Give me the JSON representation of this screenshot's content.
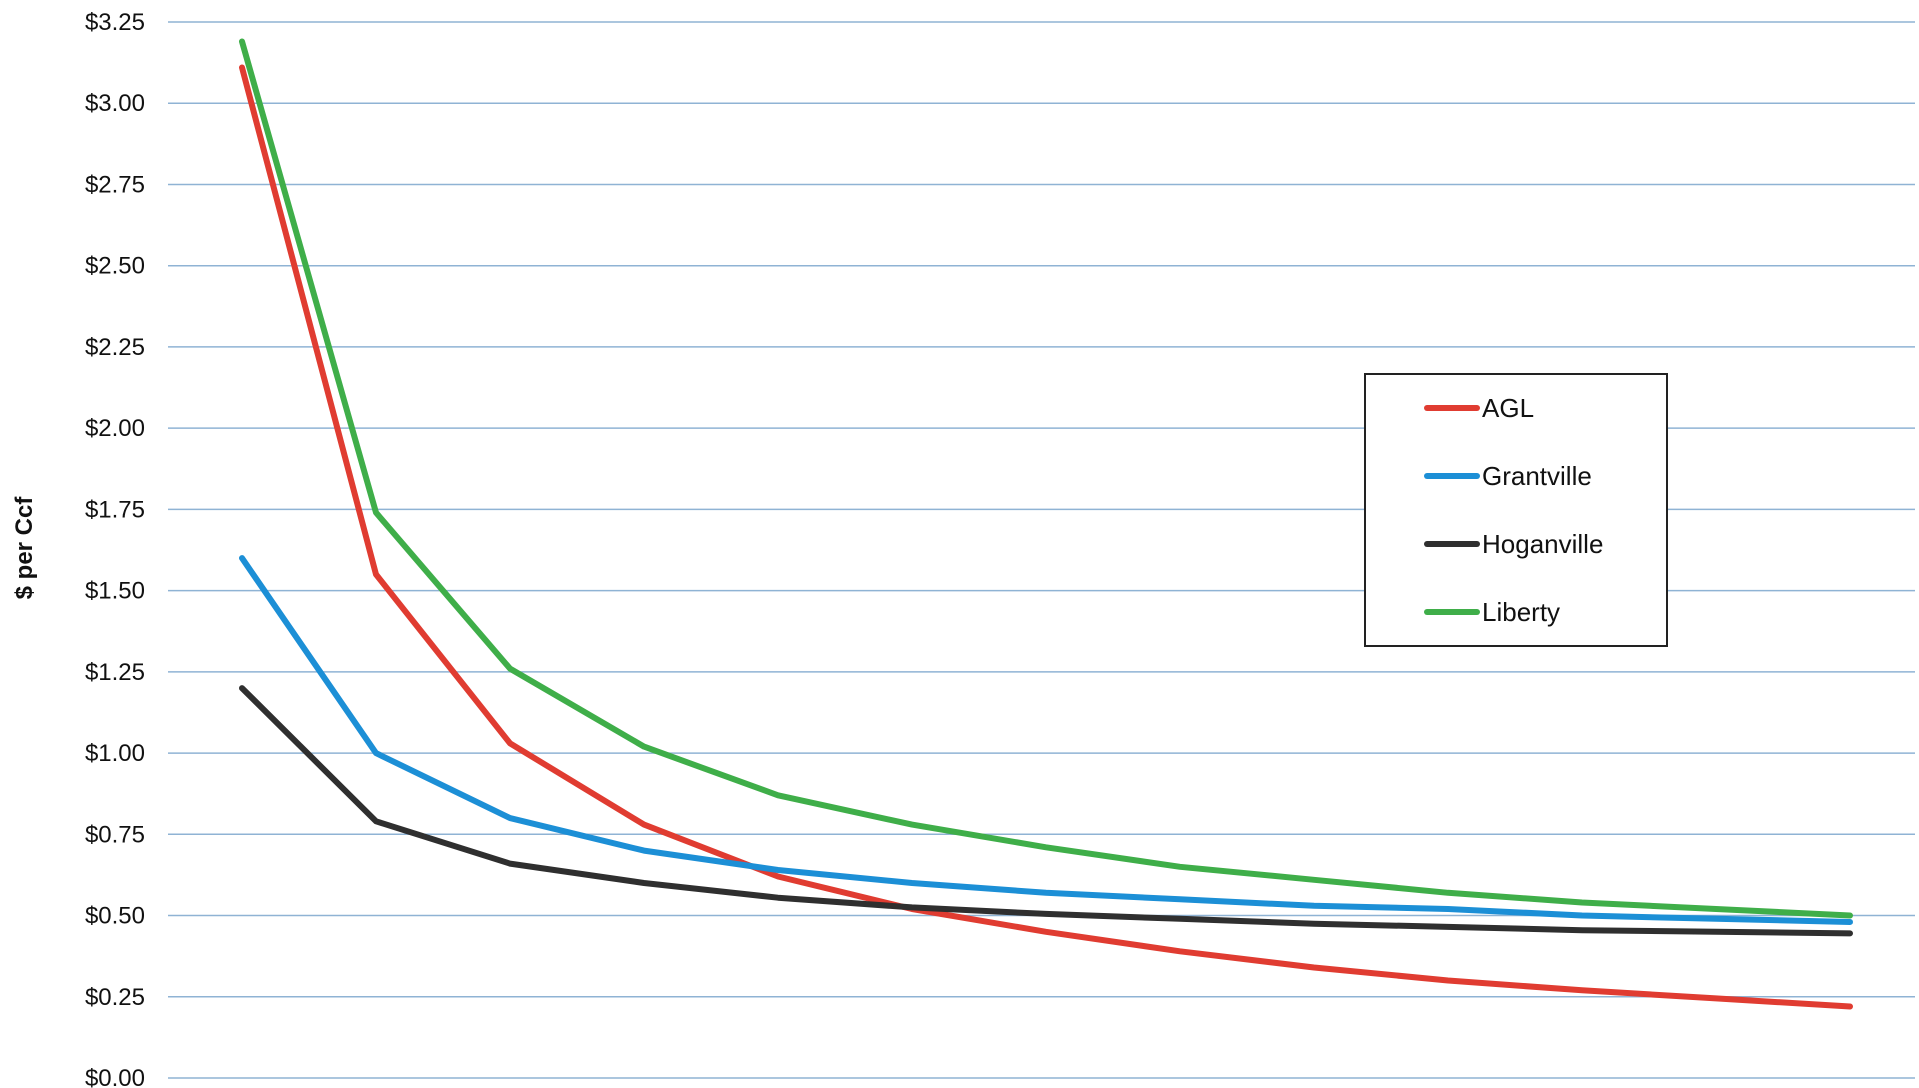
{
  "chart_data": {
    "type": "line",
    "title": "",
    "xlabel": "",
    "ylabel": "$ per Ccf",
    "ylim": [
      0,
      3.25
    ],
    "yticks": [
      "$0.00",
      "$0.25",
      "$0.50",
      "$0.75",
      "$1.00",
      "$1.25",
      "$1.50",
      "$1.75",
      "$2.00",
      "$2.25",
      "$2.50",
      "$2.75",
      "$3.00",
      "$3.25"
    ],
    "grid": true,
    "legend_position": "right",
    "x": [
      1,
      2,
      3,
      4,
      5,
      6,
      7,
      8,
      9,
      10,
      11,
      12,
      13
    ],
    "series": [
      {
        "name": "AGL",
        "color": "#e03c31",
        "values": [
          3.11,
          1.55,
          1.03,
          0.78,
          0.62,
          0.52,
          0.45,
          0.39,
          0.34,
          0.3,
          0.27,
          0.245,
          0.22
        ]
      },
      {
        "name": "Grantville",
        "color": "#1c8fd6",
        "values": [
          1.6,
          1.0,
          0.8,
          0.7,
          0.64,
          0.6,
          0.57,
          0.55,
          0.53,
          0.52,
          0.5,
          0.49,
          0.48
        ]
      },
      {
        "name": "Hoganville",
        "color": "#2f2f2f",
        "values": [
          1.2,
          0.79,
          0.66,
          0.6,
          0.555,
          0.525,
          0.505,
          0.49,
          0.475,
          0.465,
          0.455,
          0.45,
          0.445
        ]
      },
      {
        "name": "Liberty",
        "color": "#3fae49",
        "values": [
          3.19,
          1.74,
          1.26,
          1.02,
          0.87,
          0.78,
          0.71,
          0.65,
          0.61,
          0.57,
          0.54,
          0.52,
          0.5
        ]
      }
    ]
  },
  "colors": {
    "gridline": "#8fb3d4",
    "legend_border": "#222222"
  }
}
